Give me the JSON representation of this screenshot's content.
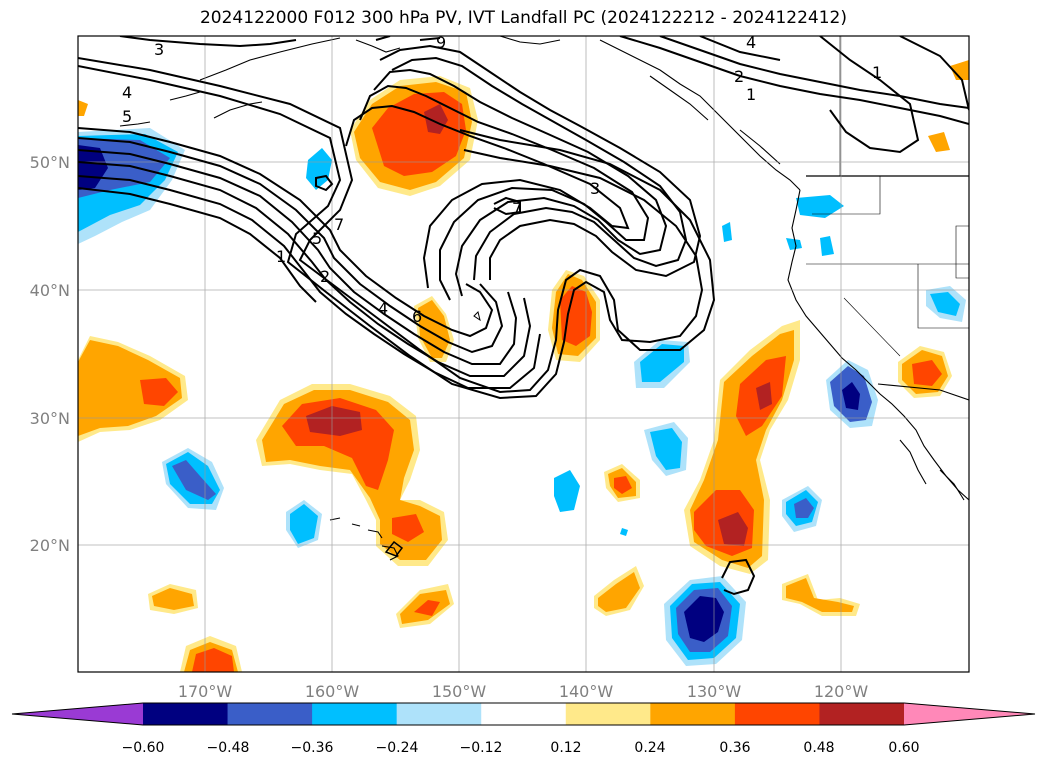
{
  "title": "2024122000 F012 300 hPa PV, IVT Landfall PC (2024122212 - 2024122412)",
  "map": {
    "lon_ticks": [
      "170°W",
      "160°W",
      "150°W",
      "140°W",
      "130°W",
      "120°W"
    ],
    "lat_ticks": [
      "50°N",
      "40°N",
      "30°N",
      "20°N"
    ],
    "tick_label_color": "#808080",
    "grid": true,
    "contour_labels": [
      "3",
      "4",
      "5",
      "1",
      "2",
      "5",
      "7",
      "4",
      "6",
      "3",
      "7",
      "9",
      "4",
      "2",
      "1",
      "1"
    ]
  },
  "colorbar": {
    "colors": [
      "#9a3ad4",
      "#000080",
      "#3a5ec8",
      "#00bfff",
      "#aee2fa",
      "#ffffff",
      "#ffe98a",
      "#ffa500",
      "#ff4500",
      "#b22222",
      "#ff88b8"
    ],
    "tick_labels": [
      "−0.60",
      "−0.48",
      "−0.36",
      "−0.24",
      "−0.12",
      "0.12",
      "0.24",
      "0.36",
      "0.48",
      "0.60"
    ]
  }
}
